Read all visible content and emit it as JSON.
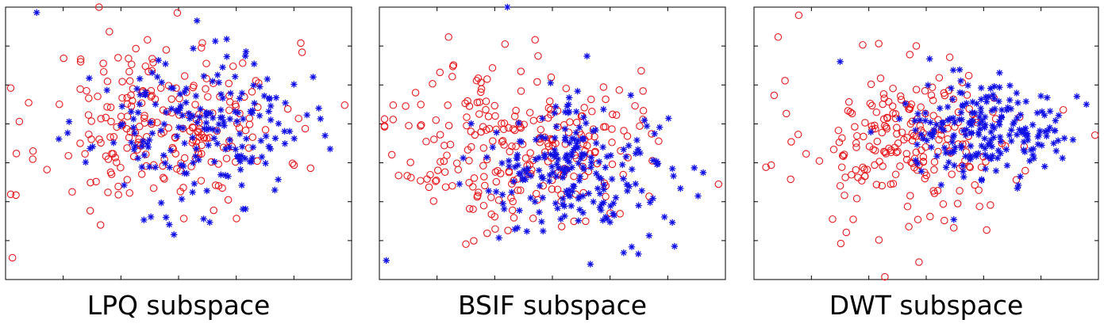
{
  "chart_data": [
    {
      "type": "scatter",
      "caption": "LPQ subspace",
      "xlim": [
        0,
        100
      ],
      "ylim": [
        0,
        100
      ],
      "grid": false,
      "tick_labels": false,
      "series": [
        {
          "marker": "o",
          "color": "#e8191c",
          "seed": 11,
          "n": 230,
          "center": [
            46,
            57
          ],
          "spread": [
            17,
            15
          ],
          "extra": [
            [
              3,
              31
            ],
            [
              2,
              8
            ],
            [
              27,
              100
            ],
            [
              98,
              64
            ],
            [
              30,
              91
            ],
            [
              41,
              88
            ]
          ]
        },
        {
          "marker": "*",
          "color": "#1010e6",
          "seed": 23,
          "n": 200,
          "center": [
            56,
            55
          ],
          "spread": [
            15,
            13
          ],
          "extra": [
            [
              9,
              98
            ],
            [
              91,
              59
            ],
            [
              42,
              23
            ],
            [
              59,
              21
            ],
            [
              38,
              70
            ]
          ]
        }
      ]
    },
    {
      "type": "scatter",
      "caption": "BSIF subspace",
      "xlim": [
        0,
        100
      ],
      "ylim": [
        0,
        100
      ],
      "grid": false,
      "tick_labels": false,
      "series": [
        {
          "marker": "o",
          "color": "#e8191c",
          "seed": 37,
          "n": 250,
          "center": [
            40,
            50
          ],
          "spread": [
            17,
            15
          ],
          "extra": [
            [
              4,
              64
            ],
            [
              9,
              43
            ],
            [
              98,
              35
            ],
            [
              20,
              89
            ],
            [
              25,
              13
            ],
            [
              45,
              88
            ]
          ]
        },
        {
          "marker": "*",
          "color": "#1010e6",
          "seed": 41,
          "n": 220,
          "center": [
            57,
            40
          ],
          "spread": [
            14,
            12
          ],
          "extra": [
            [
              37,
              100
            ],
            [
              2,
              7
            ],
            [
              85,
              38
            ],
            [
              91,
              41
            ],
            [
              60,
              82
            ]
          ]
        }
      ]
    },
    {
      "type": "scatter",
      "caption": "DWT subspace",
      "xlim": [
        0,
        100
      ],
      "ylim": [
        0,
        100
      ],
      "grid": false,
      "tick_labels": false,
      "series": [
        {
          "marker": "o",
          "color": "#e8191c",
          "seed": 53,
          "n": 220,
          "center": [
            46,
            49
          ],
          "spread": [
            16,
            15
          ],
          "extra": [
            [
              13,
              97
            ],
            [
              7,
              89
            ],
            [
              9,
              73
            ],
            [
              5,
              42
            ],
            [
              38,
              1
            ],
            [
              99,
              53
            ]
          ]
        },
        {
          "marker": "*",
          "color": "#1010e6",
          "seed": 67,
          "n": 210,
          "center": [
            66,
            53
          ],
          "spread": [
            11,
            9
          ],
          "extra": [
            [
              25,
              80
            ],
            [
              51,
              81
            ],
            [
              87,
              50
            ],
            [
              58,
              22
            ]
          ]
        }
      ]
    }
  ]
}
